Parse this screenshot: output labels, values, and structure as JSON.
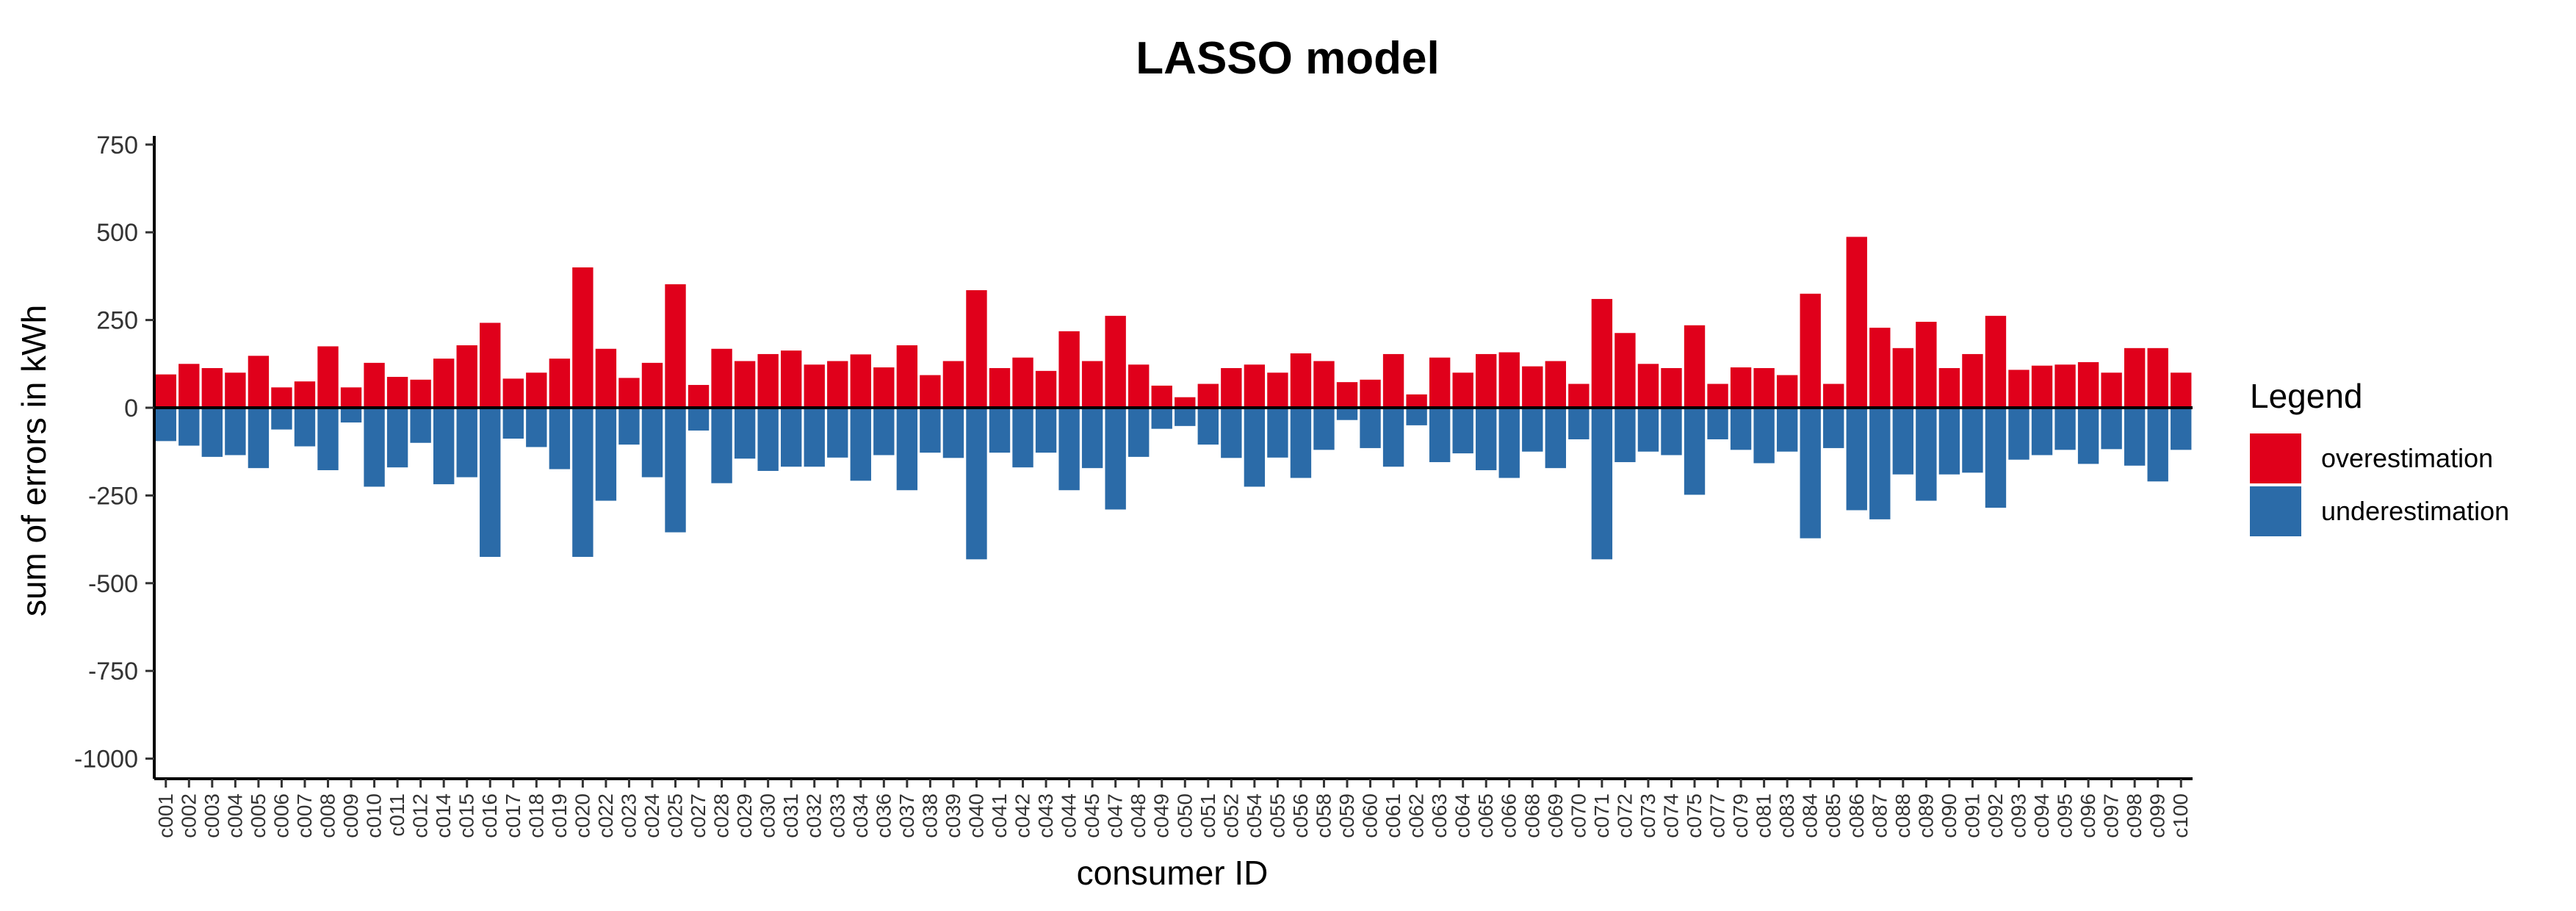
{
  "chart_data": {
    "type": "bar",
    "title": "LASSO model",
    "xlabel": "consumer ID",
    "ylabel": "sum of errors in kWh",
    "ylim": [
      -1050,
      770
    ],
    "yticks": [
      750,
      500,
      250,
      0,
      -250,
      -500,
      -750,
      -1000
    ],
    "grid": false,
    "legend": {
      "title": "Legend",
      "position": "right"
    },
    "categories": [
      "c001",
      "c002",
      "c003",
      "c004",
      "c005",
      "c006",
      "c007",
      "c008",
      "c009",
      "c010",
      "c011",
      "c012",
      "c014",
      "c015",
      "c016",
      "c017",
      "c018",
      "c019",
      "c020",
      "c022",
      "c023",
      "c024",
      "c025",
      "c027",
      "c028",
      "c029",
      "c030",
      "c031",
      "c032",
      "c033",
      "c034",
      "c036",
      "c037",
      "c038",
      "c039",
      "c040",
      "c041",
      "c042",
      "c043",
      "c044",
      "c045",
      "c047",
      "c048",
      "c049",
      "c050",
      "c051",
      "c052",
      "c054",
      "c055",
      "c056",
      "c058",
      "c059",
      "c060",
      "c061",
      "c062",
      "c063",
      "c064",
      "c065",
      "c066",
      "c068",
      "c069",
      "c070",
      "c071",
      "c072",
      "c073",
      "c074",
      "c075",
      "c077",
      "c079",
      "c081",
      "c083",
      "c084",
      "c085",
      "c086",
      "c087",
      "c088",
      "c089",
      "c090",
      "c091",
      "c092",
      "c093",
      "c094",
      "c095",
      "c096",
      "c097",
      "c098",
      "c099",
      "c100"
    ],
    "series": [
      {
        "name": "overestimation",
        "color": "#e0001b",
        "values": [
          95,
          125,
          113,
          100,
          148,
          58,
          75,
          175,
          58,
          128,
          88,
          80,
          140,
          178,
          242,
          83,
          100,
          140,
          400,
          168,
          85,
          128,
          352,
          65,
          168,
          133,
          153,
          163,
          123,
          133,
          152,
          115,
          178,
          93,
          133,
          335,
          113,
          143,
          105,
          218,
          133,
          262,
          123,
          63,
          30,
          68,
          113,
          123,
          100,
          155,
          133,
          73,
          80,
          153,
          38,
          143,
          100,
          153,
          158,
          118,
          133,
          68,
          310,
          213,
          125,
          113,
          235,
          68,
          115,
          113,
          93,
          325,
          68,
          487,
          228,
          170,
          245,
          113,
          153,
          262,
          108,
          120,
          123,
          130,
          100,
          170,
          170,
          100
        ]
      },
      {
        "name": "underestimation",
        "color": "#2b6ba8",
        "values": [
          -95,
          -108,
          -140,
          -135,
          -172,
          -62,
          -110,
          -178,
          -42,
          -225,
          -170,
          -100,
          -218,
          -198,
          -425,
          -88,
          -112,
          -175,
          -425,
          -265,
          -105,
          -198,
          -355,
          -65,
          -215,
          -145,
          -180,
          -168,
          -168,
          -142,
          -208,
          -135,
          -235,
          -128,
          -143,
          -432,
          -128,
          -170,
          -128,
          -235,
          -172,
          -290,
          -140,
          -60,
          -52,
          -105,
          -143,
          -225,
          -142,
          -200,
          -120,
          -35,
          -115,
          -168,
          -50,
          -155,
          -130,
          -178,
          -200,
          -125,
          -172,
          -90,
          -432,
          -155,
          -125,
          -135,
          -248,
          -90,
          -120,
          -158,
          -125,
          -372,
          -115,
          -292,
          -318,
          -190,
          -265,
          -190,
          -185,
          -285,
          -148,
          -135,
          -120,
          -160,
          -118,
          -165,
          -210,
          -120
        ]
      }
    ]
  }
}
